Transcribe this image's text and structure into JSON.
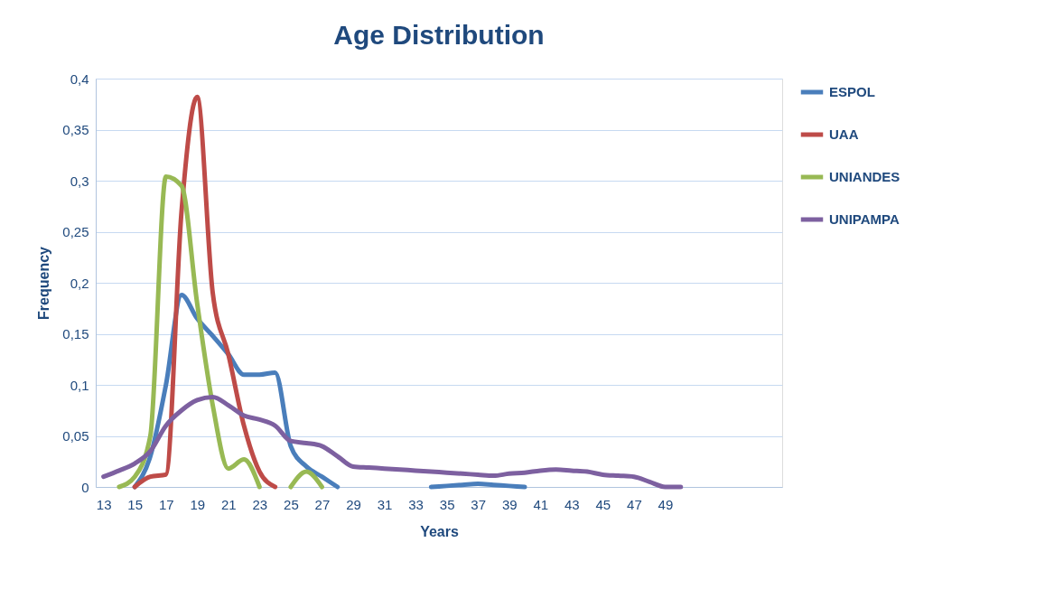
{
  "chart_data": {
    "type": "line",
    "title": "Age Distribution",
    "xlabel": "Years",
    "ylabel": "Frequency",
    "x": [
      13,
      14,
      15,
      16,
      17,
      18,
      19,
      20,
      21,
      22,
      23,
      24,
      25,
      26,
      27,
      28,
      29,
      30,
      31,
      32,
      33,
      34,
      35,
      36,
      37,
      38,
      39,
      40,
      41,
      42,
      43,
      44,
      45,
      46,
      47,
      48,
      49,
      50
    ],
    "series": [
      {
        "name": "ESPOL",
        "color": "#4a7ebb",
        "values": [
          null,
          null,
          0,
          0.03,
          0.1,
          0.188,
          0.165,
          0.148,
          0.13,
          0.11,
          0.11,
          0.112,
          0.04,
          0.02,
          0.01,
          0,
          null,
          null,
          null,
          null,
          null,
          0,
          0.001,
          0.002,
          0.003,
          0.002,
          0.001,
          0,
          null,
          null,
          null,
          null,
          null,
          null,
          null,
          null,
          null,
          null
        ]
      },
      {
        "name": "UAA",
        "color": "#be4b48",
        "values": [
          null,
          null,
          0,
          0.01,
          0.012,
          0.27,
          0.382,
          0.19,
          0.13,
          0.06,
          0.015,
          0,
          null,
          null,
          null,
          null,
          null,
          null,
          null,
          null,
          null,
          null,
          null,
          null,
          null,
          null,
          null,
          null,
          null,
          null,
          null,
          null,
          null,
          null,
          null,
          null,
          null,
          null
        ]
      },
      {
        "name": "UNIANDES",
        "color": "#98b954",
        "values": [
          null,
          0,
          0.01,
          0.05,
          0.304,
          0.295,
          0.18,
          0.08,
          0.018,
          0.027,
          0,
          null,
          0,
          0.015,
          0,
          null,
          null,
          null,
          null,
          null,
          null,
          null,
          null,
          null,
          null,
          null,
          null,
          null,
          null,
          null,
          null,
          null,
          null,
          null,
          null,
          null,
          null,
          null
        ]
      },
      {
        "name": "UNIPAMPA",
        "color": "#7d60a0",
        "values": [
          0.01,
          0.016,
          0.023,
          0.035,
          0.06,
          0.075,
          0.085,
          0.088,
          0.08,
          0.07,
          0.066,
          0.06,
          0.045,
          0.043,
          0.04,
          0.03,
          0.02,
          0.019,
          0.018,
          0.017,
          0.016,
          0.015,
          0.014,
          0.013,
          0.012,
          0.011,
          0.013,
          0.014,
          0.016,
          0.017,
          0.016,
          0.015,
          0.012,
          0.011,
          0.01,
          0.005,
          0,
          0
        ]
      }
    ],
    "xlim": [
      12.5,
      56.5
    ],
    "xticks": [
      13,
      15,
      17,
      19,
      21,
      23,
      25,
      27,
      29,
      31,
      33,
      35,
      37,
      39,
      41,
      43,
      45,
      47,
      49
    ],
    "ylim": [
      0,
      0.4
    ],
    "yticks": [
      0,
      {
        "value": 0.05,
        "label": "0,05"
      },
      {
        "value": 0.1,
        "label": "0,1"
      },
      {
        "value": 0.15,
        "label": "0,15"
      },
      {
        "value": 0.2,
        "label": "0,2"
      },
      {
        "value": 0.25,
        "label": "0,25"
      },
      {
        "value": 0.3,
        "label": "0,3"
      },
      {
        "value": 0.35,
        "label": "0,35"
      },
      {
        "value": 0.4,
        "label": "0,4"
      }
    ],
    "grid": "y",
    "legend": "right",
    "line_style": "solid",
    "marker": "none"
  }
}
